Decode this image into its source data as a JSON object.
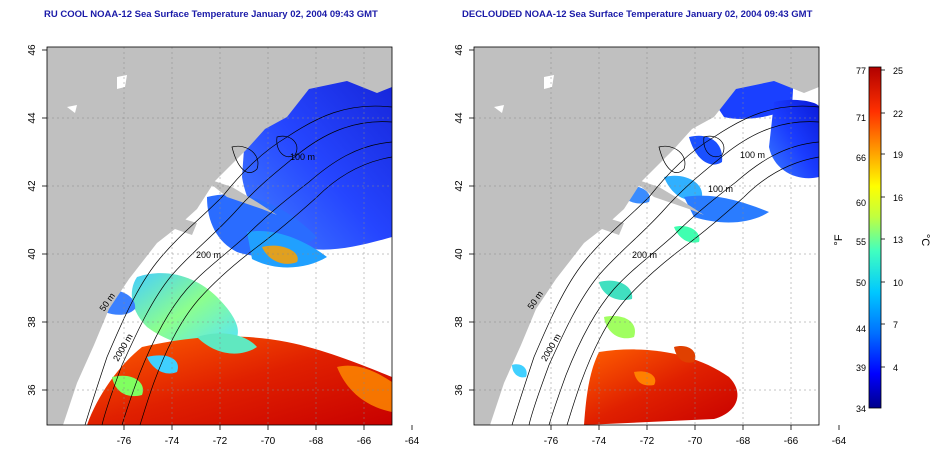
{
  "panels": [
    {
      "title": "RU COOL NOAA-12 Sea Surface Temperature January 02, 2004 09:43 GMT",
      "contour_labels": [
        "100 m",
        "200 m",
        "50 m",
        "2000 m"
      ]
    },
    {
      "title": "DECLOUDED NOAA-12 Sea Surface Temperature January 02, 2004 09:43 GMT",
      "contour_labels": [
        "100 m",
        "100 m",
        "200 m",
        "50 m",
        "2000 m"
      ]
    }
  ],
  "axes": {
    "lon_ticks": [
      "-76",
      "-74",
      "-72",
      "-70",
      "-68",
      "-66",
      "-64"
    ],
    "lat_ticks": [
      "36",
      "38",
      "40",
      "42",
      "44",
      "46"
    ]
  },
  "colorbar": {
    "unit_f": "°F",
    "unit_c": "°C",
    "f_ticks": [
      "77",
      "71",
      "66",
      "60",
      "55",
      "50",
      "44",
      "39",
      "34"
    ],
    "c_ticks": [
      "25",
      "22",
      "19",
      "16",
      "13",
      "10",
      "7",
      "4"
    ],
    "colors": [
      "#00008b",
      "#0000ff",
      "#0070ff",
      "#00c8ff",
      "#40ffc0",
      "#c0ff40",
      "#ffff00",
      "#ffa000",
      "#ff3000",
      "#b00000"
    ]
  },
  "colors": {
    "land": "#c0c0c0",
    "title": "#1a1aa8"
  }
}
